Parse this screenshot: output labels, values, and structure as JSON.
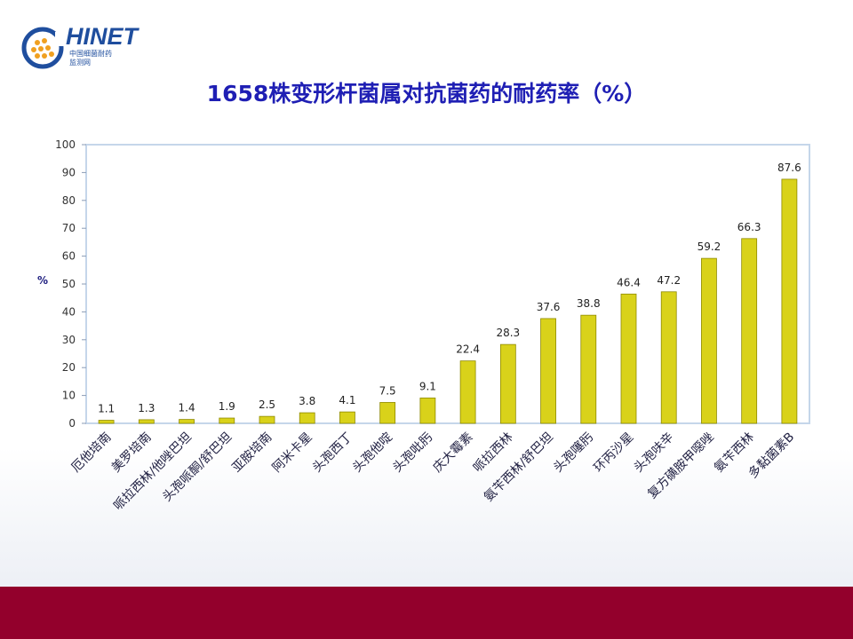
{
  "logo": {
    "name": "HINET",
    "line1": "中国细菌耐药",
    "line2": "监测网"
  },
  "chart_data": {
    "type": "bar",
    "title": "1658株变形杆菌属对抗菌药的耐药率（%）",
    "xlabel": "",
    "ylabel": "%",
    "ylim": [
      0,
      100
    ],
    "yticks": [
      0,
      10,
      20,
      30,
      40,
      50,
      60,
      70,
      80,
      90,
      100
    ],
    "grid": false,
    "legend": "none",
    "bar_color": "#d9d21a",
    "categories": [
      "厄他培南",
      "美罗培南",
      "哌拉西林/他唑巴坦",
      "头孢哌酮/舒巴坦",
      "亚胺培南",
      "阿米卡星",
      "头孢西丁",
      "头孢他啶",
      "头孢吡肟",
      "庆大霉素",
      "哌拉西林",
      "氨苄西林/舒巴坦",
      "头孢噻肟",
      "环丙沙星",
      "头孢呋辛",
      "复方磺胺甲噁唑",
      "氨苄西林",
      "多黏菌素B"
    ],
    "values": [
      1.1,
      1.3,
      1.4,
      1.9,
      2.5,
      3.8,
      4.1,
      7.5,
      9.1,
      22.4,
      28.3,
      37.6,
      38.8,
      46.4,
      47.2,
      59.2,
      66.3,
      87.6
    ],
    "data_labels": [
      "1.1",
      "1.3",
      "1.4",
      "1.9",
      "2.5",
      "3.8",
      "4.1",
      "7.5",
      "9.1",
      "22.4",
      "28.3",
      "37.6",
      "38.8",
      "46.4",
      "47.2",
      "59.2",
      "66.3",
      "87.6"
    ]
  }
}
